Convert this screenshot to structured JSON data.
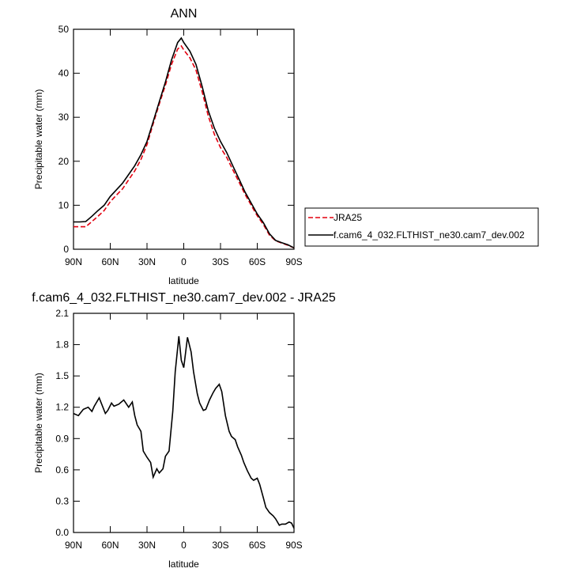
{
  "chart_data": [
    {
      "type": "line",
      "title": "ANN",
      "x_label": "latitude",
      "y_label": "Precipitable water (mm)",
      "x": [
        90,
        85,
        80,
        75,
        70,
        65,
        60,
        55,
        50,
        45,
        40,
        35,
        30,
        25,
        20,
        15,
        10,
        5,
        2,
        0,
        -5,
        -10,
        -15,
        -20,
        -25,
        -30,
        -35,
        -40,
        -45,
        -50,
        -55,
        -60,
        -65,
        -70,
        -75,
        -80,
        -85,
        -90
      ],
      "series": [
        {
          "name": "JRA25",
          "color": "#e3000f",
          "line_style": "dashed",
          "values": [
            5.1,
            5.1,
            5.1,
            6.3,
            7.5,
            8.8,
            10.8,
            12.3,
            13.7,
            15.8,
            17.8,
            20.4,
            23.8,
            28.5,
            33,
            37.3,
            42,
            45.5,
            46.2,
            45.3,
            43.5,
            40.7,
            35.8,
            30.3,
            26.1,
            23.1,
            20.9,
            18.1,
            15.3,
            12.5,
            10,
            7.6,
            5.6,
            3.2,
            1.9,
            1.4,
            0.9,
            0.3
          ]
        },
        {
          "name": "f.cam6_4_032.FLTHIST_ne30.cam7_dev.002",
          "color": "#000000",
          "line_style": "solid",
          "values": [
            6.2,
            6.2,
            6.3,
            7.5,
            8.8,
            10,
            12,
            13.5,
            15,
            17,
            19,
            21.5,
            24.5,
            29,
            33.5,
            38,
            43,
            47,
            48,
            47,
            45,
            42,
            37,
            31.5,
            27.5,
            24.5,
            22,
            19,
            16,
            13,
            10.5,
            8,
            6,
            3.5,
            2,
            1.5,
            1,
            0.3
          ]
        }
      ],
      "xlim": [
        90,
        -90
      ],
      "xticks": [
        {
          "value": 90,
          "label": "90N"
        },
        {
          "value": 60,
          "label": "60N"
        },
        {
          "value": 30,
          "label": "30N"
        },
        0,
        {
          "value": -30,
          "label": "30S"
        },
        {
          "value": -60,
          "label": "60S"
        },
        {
          "value": -90,
          "label": "90S"
        }
      ],
      "ylim": [
        0,
        50
      ],
      "yticks": [
        0,
        10,
        20,
        30,
        40,
        50
      ],
      "legend": "right"
    },
    {
      "type": "line",
      "title": "f.cam6_4_032.FLTHIST_ne30.cam7_dev.002 - JRA25",
      "x_label": "latitude",
      "y_label": "Precipitable water (mm)",
      "x": [
        90,
        86,
        82,
        78,
        75,
        73,
        69,
        64,
        62,
        59,
        57,
        53,
        49,
        45,
        42,
        40,
        38,
        35,
        33,
        30,
        27,
        25,
        22,
        20,
        17,
        15,
        12,
        9,
        7,
        4,
        2,
        0,
        -3,
        -6,
        -8,
        -11,
        -13,
        -16,
        -18,
        -21,
        -24,
        -26,
        -29,
        -31,
        -34,
        -37,
        -39,
        -42,
        -44,
        -47,
        -49,
        -52,
        -55,
        -57,
        -60,
        -62,
        -65,
        -67,
        -70,
        -73,
        -75,
        -78,
        -80,
        -83,
        -86,
        -88,
        -90
      ],
      "series": [
        {
          "name": null,
          "color": "#000000",
          "line_style": "solid",
          "values": [
            1.14,
            1.12,
            1.18,
            1.2,
            1.16,
            1.21,
            1.29,
            1.14,
            1.17,
            1.24,
            1.21,
            1.23,
            1.27,
            1.2,
            1.25,
            1.12,
            1.03,
            0.97,
            0.78,
            0.72,
            0.67,
            0.53,
            0.61,
            0.57,
            0.61,
            0.73,
            0.78,
            1.16,
            1.54,
            1.88,
            1.65,
            1.58,
            1.87,
            1.73,
            1.54,
            1.33,
            1.24,
            1.17,
            1.18,
            1.27,
            1.34,
            1.38,
            1.42,
            1.35,
            1.12,
            0.97,
            0.92,
            0.89,
            0.82,
            0.74,
            0.67,
            0.59,
            0.52,
            0.5,
            0.52,
            0.46,
            0.33,
            0.24,
            0.19,
            0.16,
            0.13,
            0.07,
            0.08,
            0.08,
            0.1,
            0.09,
            0.04
          ]
        }
      ],
      "xlim": [
        90,
        -90
      ],
      "xticks": [
        {
          "value": 90,
          "label": "90N"
        },
        {
          "value": 60,
          "label": "60N"
        },
        {
          "value": 30,
          "label": "30N"
        },
        0,
        {
          "value": -30,
          "label": "30S"
        },
        {
          "value": -60,
          "label": "60S"
        },
        {
          "value": -90,
          "label": "90S"
        }
      ],
      "ylim": [
        0,
        2.1
      ],
      "yticks": [
        {
          "value": 0,
          "label": "0.0"
        },
        0.3,
        0.6,
        0.9,
        1.2,
        1.5,
        1.8,
        2.1
      ]
    }
  ]
}
